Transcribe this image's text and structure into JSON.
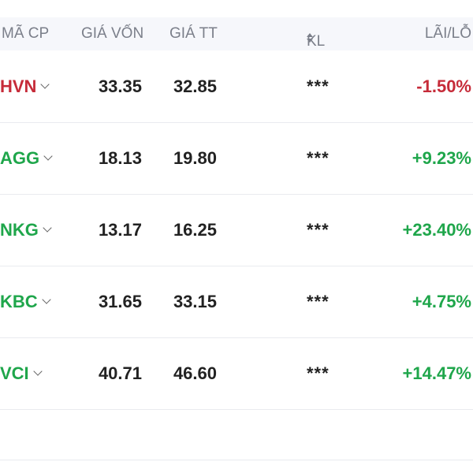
{
  "header": {
    "code_label": "MÃ CP",
    "cost_label": "GIÁ VỐN",
    "market_label": "GIÁ TT",
    "kl_label": "KL",
    "pl_label": "LÃI/LỖ"
  },
  "colors": {
    "red": "#c62b39",
    "green": "#1fa64b"
  },
  "rows": [
    {
      "code": "HVN",
      "cost": "33.35",
      "market": "32.85",
      "kl": "***",
      "pl": "-1.50%",
      "status": "red"
    },
    {
      "code": "AGG",
      "cost": "18.13",
      "market": "19.80",
      "kl": "***",
      "pl": "+9.23%",
      "status": "green"
    },
    {
      "code": "NKG",
      "cost": "13.17",
      "market": "16.25",
      "kl": "***",
      "pl": "+23.40%",
      "status": "green"
    },
    {
      "code": "KBC",
      "cost": "31.65",
      "market": "33.15",
      "kl": "***",
      "pl": "+4.75%",
      "status": "green"
    },
    {
      "code": "VCI",
      "cost": "40.71",
      "market": "46.60",
      "kl": "***",
      "pl": "+14.47%",
      "status": "green"
    }
  ]
}
